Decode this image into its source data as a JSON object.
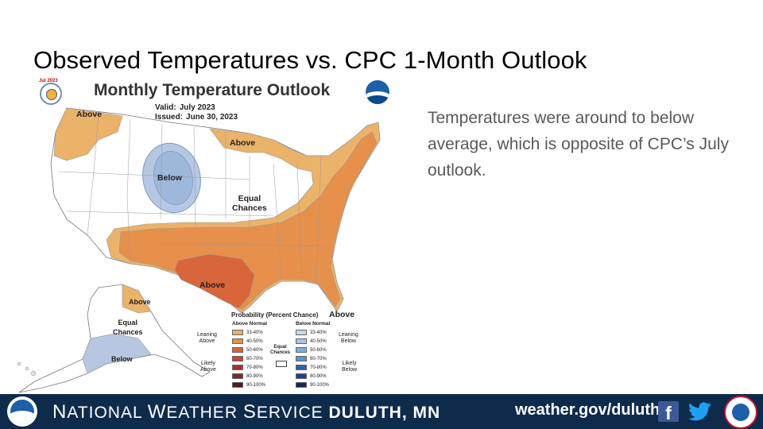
{
  "slide": {
    "title": "Observed Temperatures vs. CPC 1-Month Outlook",
    "body": "Temperatures were around to below average, which is opposite of CPC’s July outlook."
  },
  "map": {
    "title": "Monthly Temperature Outlook",
    "badge": "Jul 2023",
    "valid_label": "Valid:",
    "valid_value": "July 2023",
    "issued_label": "Issued:",
    "issued_value": "June 30, 2023",
    "labels": {
      "above_nw": "Above",
      "above_ne": "Above",
      "below_north": "Below",
      "equal_chances": "Equal\nChances",
      "above_south": "Above",
      "above_fl": "Above",
      "above_ak": "Above",
      "equal_chances_ak": "Equal\nChances",
      "below_ak": "Below"
    },
    "colors": {
      "above_33_40": "#ebb26a",
      "above_40_50": "#e6904c",
      "above_50_60": "#d9653a",
      "below_33_40": "#b7c7e2",
      "below_40_50": "#9eb8dc",
      "equal_chances": "#ffffff"
    }
  },
  "legend": {
    "title": "Probability (Percent Chance)",
    "above_header": "Above Normal",
    "below_header": "Below Normal",
    "equal_label": "Equal\nChances",
    "leaning_above": "Leaning\nAbove",
    "likely_above": "Likely\nAbove",
    "leaning_below": "Leaning\nBelow",
    "likely_below": "Likely\nBelow",
    "above_bins": [
      {
        "label": "33-40%",
        "color": "#ebb26a"
      },
      {
        "label": "40-50%",
        "color": "#e6904c"
      },
      {
        "label": "50-60%",
        "color": "#d9653a"
      },
      {
        "label": "60-70%",
        "color": "#c8453a"
      },
      {
        "label": "70-80%",
        "color": "#a92f2f"
      },
      {
        "label": "80-90%",
        "color": "#7a2a2a"
      },
      {
        "label": "90-100%",
        "color": "#4a1c1c"
      }
    ],
    "below_bins": [
      {
        "label": "33-40%",
        "color": "#c9d6ec"
      },
      {
        "label": "40-50%",
        "color": "#a9c3e4"
      },
      {
        "label": "50-60%",
        "color": "#7faedc"
      },
      {
        "label": "60-70%",
        "color": "#5b93cf"
      },
      {
        "label": "70-80%",
        "color": "#2f5fa8"
      },
      {
        "label": "80-90%",
        "color": "#23407e"
      },
      {
        "label": "90-100%",
        "color": "#1c2550"
      }
    ]
  },
  "footer": {
    "org_first": "N",
    "org_rest1": "ATIONAL ",
    "org_second": "W",
    "org_rest2": "EATHER ",
    "org_third": "S",
    "org_rest3": "ERVICE ",
    "office": "DULUTH, MN",
    "url": "weather.gov/duluth",
    "facebook_icon": "facebook-icon",
    "twitter_icon": "twitter-icon",
    "bg_color": "#0f2b4c"
  }
}
